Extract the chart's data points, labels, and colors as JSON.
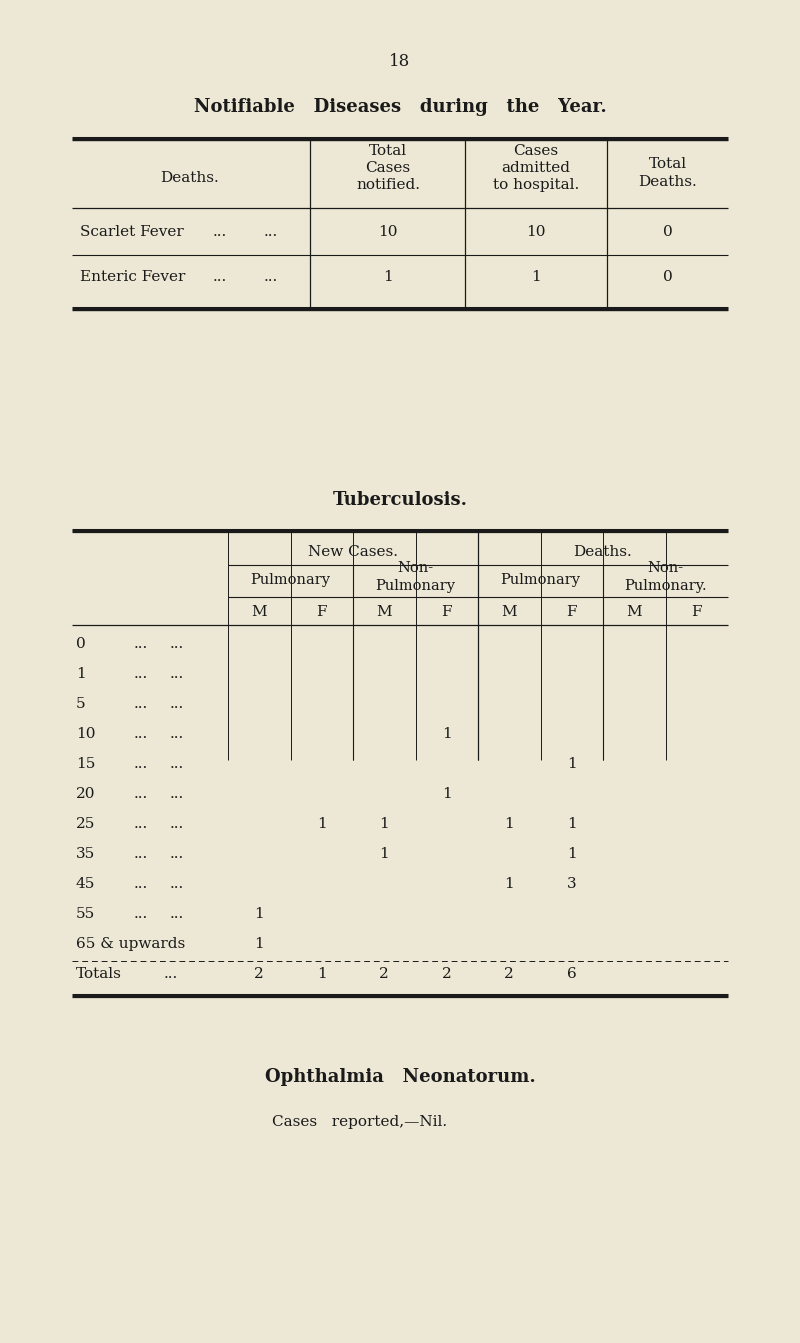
{
  "bg_color": "#ede8d5",
  "text_color": "#1a1a1a",
  "page_number": "18",
  "title1": "Notifiable   Diseases   during   the   Year.",
  "title2": "Tuberculosis.",
  "tb_age_periods": [
    "0",
    "1",
    "5",
    "10",
    "15",
    "20",
    "25",
    "35",
    "45",
    "55",
    "65 & upwards",
    "Totals"
  ],
  "tb_data": {
    "new_pulm_M": [
      "",
      "",
      "",
      "",
      "",
      "",
      "",
      "",
      "",
      "1",
      "1",
      "2"
    ],
    "new_pulm_F": [
      "",
      "",
      "",
      "",
      "",
      "",
      "1",
      "",
      "",
      "",
      "",
      "1"
    ],
    "new_npulm_M": [
      "",
      "",
      "",
      "",
      "",
      "",
      "1",
      "1",
      "",
      "",
      "",
      "2"
    ],
    "new_npulm_F": [
      "",
      "",
      "",
      "1",
      "",
      "1",
      "",
      "",
      "",
      "",
      "",
      "2"
    ],
    "dth_pulm_M": [
      "",
      "",
      "",
      "",
      "",
      "",
      "1",
      "",
      "1",
      "",
      "",
      "2"
    ],
    "dth_pulm_F": [
      "",
      "",
      "",
      "",
      "1",
      "",
      "1",
      "1",
      "3",
      "",
      "",
      "6"
    ],
    "dth_npulm_M": [
      "",
      "",
      "",
      "",
      "",
      "",
      "",
      "",
      "",
      "",
      "",
      ""
    ],
    "dth_npulm_F": [
      "",
      "",
      "",
      "",
      "",
      "",
      "",
      "",
      "",
      "",
      "",
      ""
    ]
  },
  "ophthalmia_title": "Ophthalmia   Neonatorum.",
  "ophthalmia_text": "Cases   reported,—Nil."
}
